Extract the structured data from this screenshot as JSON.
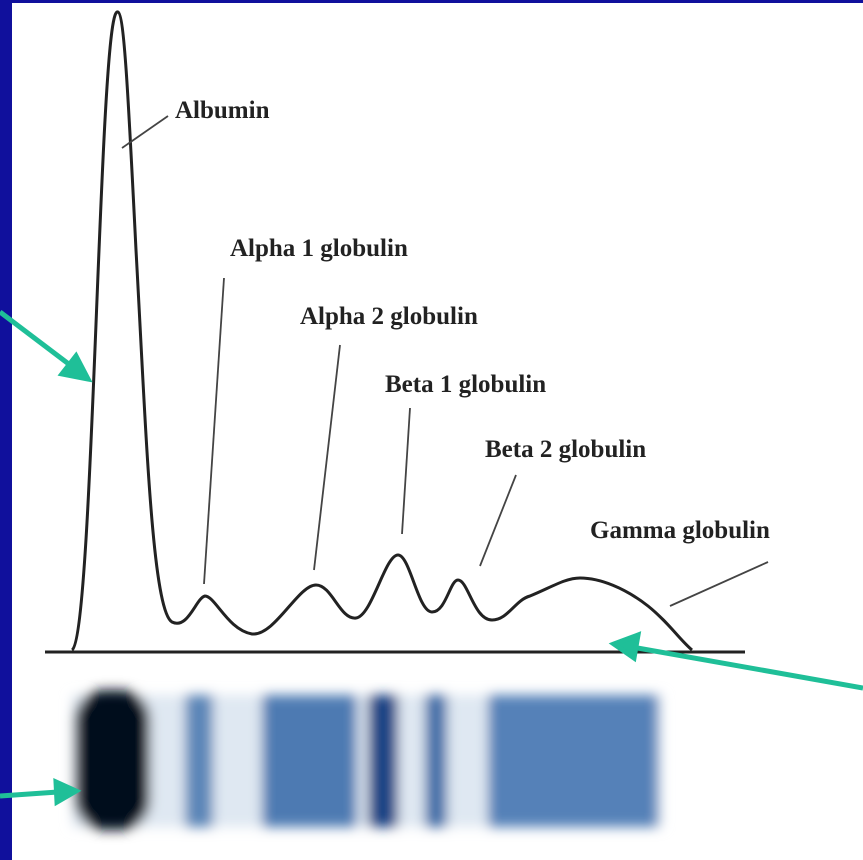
{
  "peaks": [
    {
      "label": "Albumin"
    },
    {
      "label": "Alpha 1 globulin"
    },
    {
      "label": "Alpha 2 globulin"
    },
    {
      "label": "Beta 1 globulin"
    },
    {
      "label": "Beta 2 globulin"
    },
    {
      "label": "Gamma globulin"
    }
  ]
}
